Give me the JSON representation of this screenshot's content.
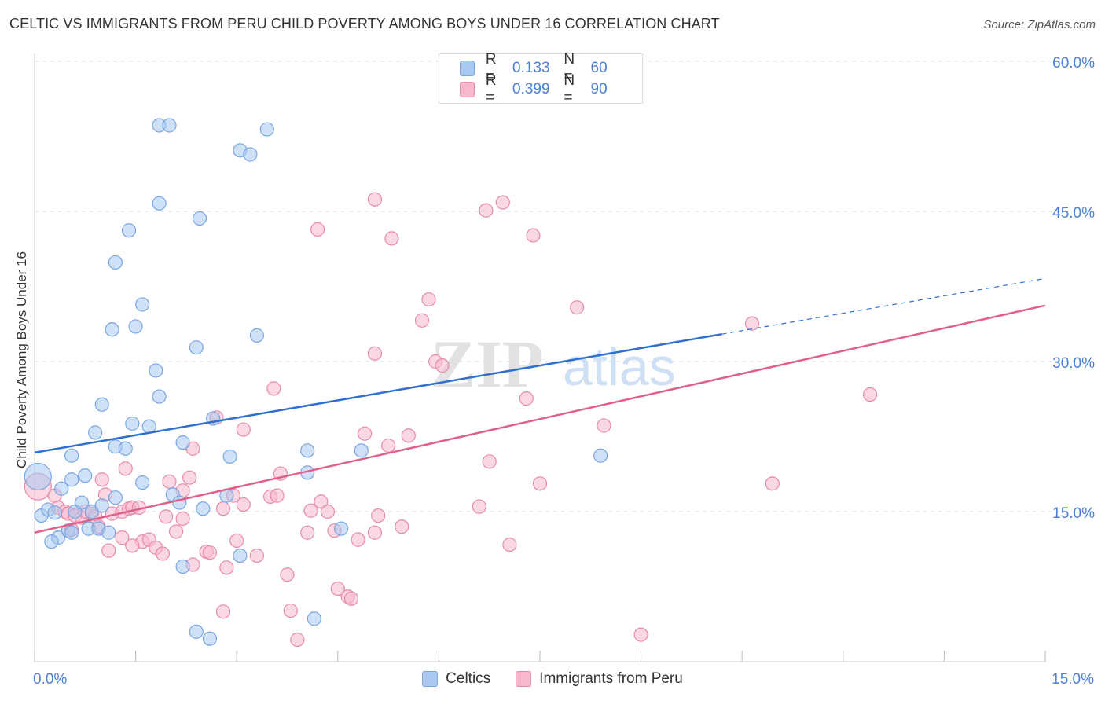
{
  "title": "CELTIC VS IMMIGRANTS FROM PERU CHILD POVERTY AMONG BOYS UNDER 16 CORRELATION CHART",
  "source": "Source: ZipAtlas.com",
  "watermark": {
    "zip": "ZIP",
    "atlas": "atlas"
  },
  "legend": {
    "series": [
      {
        "r_label": "R =",
        "r_value": "0.133",
        "n_label": "N =",
        "n_value": "60"
      },
      {
        "r_label": "R =",
        "r_value": "0.399",
        "n_label": "N =",
        "n_value": "90"
      }
    ]
  },
  "colors": {
    "celtic_fill": "#a8c8f0",
    "celtic_stroke": "#7aa6e0",
    "celtic_line": "#2f6fce",
    "peru_fill": "#f5b8cc",
    "peru_stroke": "#e88aaa",
    "peru_line": "#e0608a",
    "tick_text": "#4a7fd4",
    "grid": "#dddddd"
  },
  "chart_data": {
    "type": "scatter",
    "title": "CELTIC VS IMMIGRANTS FROM PERU CHILD POVERTY AMONG BOYS UNDER 16 CORRELATION CHART",
    "xlabel": "",
    "ylabel": "Child Poverty Among Boys Under 16",
    "xlim": [
      0,
      15
    ],
    "ylim": [
      0,
      60
    ],
    "x_tick_labels": [
      {
        "value": 0,
        "label": "0.0%"
      },
      {
        "value": 15,
        "label": "15.0%"
      }
    ],
    "y_tick_labels": [
      {
        "value": 15,
        "label": "15.0%"
      },
      {
        "value": 30,
        "label": "30.0%"
      },
      {
        "value": 45,
        "label": "45.0%"
      },
      {
        "value": 60,
        "label": "60.0%"
      }
    ],
    "grid": true,
    "series": [
      {
        "name": "Celtics",
        "r": 0.133,
        "n": 60,
        "trend": {
          "x0": 0,
          "y0": 20.9,
          "x1": 15,
          "y1": 38.3,
          "solid_until_x": 10.2
        },
        "points": [
          [
            0.1,
            14.6
          ],
          [
            0.2,
            15.2
          ],
          [
            0.3,
            14.9
          ],
          [
            0.35,
            12.4
          ],
          [
            0.5,
            13.1
          ],
          [
            0.6,
            15.0
          ],
          [
            0.55,
            12.9
          ],
          [
            0.25,
            12.0
          ],
          [
            0.4,
            17.3
          ],
          [
            0.55,
            18.2
          ],
          [
            0.75,
            18.6
          ],
          [
            0.7,
            15.9
          ],
          [
            0.85,
            15.0
          ],
          [
            0.8,
            13.3
          ],
          [
            0.95,
            13.3
          ],
          [
            1.1,
            12.9
          ],
          [
            1.2,
            16.4
          ],
          [
            1.0,
            15.6
          ],
          [
            0.55,
            20.6
          ],
          [
            0.9,
            22.9
          ],
          [
            1.2,
            21.5
          ],
          [
            1.35,
            21.3
          ],
          [
            1.45,
            23.8
          ],
          [
            1.7,
            23.5
          ],
          [
            1.6,
            17.9
          ],
          [
            1.0,
            25.7
          ],
          [
            1.85,
            26.5
          ],
          [
            1.8,
            29.1
          ],
          [
            2.2,
            21.9
          ],
          [
            2.05,
            16.7
          ],
          [
            2.15,
            15.9
          ],
          [
            2.5,
            15.3
          ],
          [
            2.65,
            24.3
          ],
          [
            2.9,
            20.5
          ],
          [
            2.85,
            16.6
          ],
          [
            2.4,
            31.4
          ],
          [
            1.15,
            33.2
          ],
          [
            1.5,
            33.5
          ],
          [
            1.6,
            35.7
          ],
          [
            3.3,
            32.6
          ],
          [
            1.2,
            39.9
          ],
          [
            1.4,
            43.1
          ],
          [
            1.85,
            45.8
          ],
          [
            2.45,
            44.3
          ],
          [
            1.85,
            53.6
          ],
          [
            2.0,
            53.6
          ],
          [
            3.05,
            51.1
          ],
          [
            3.2,
            50.7
          ],
          [
            3.45,
            53.2
          ],
          [
            4.05,
            21.1
          ],
          [
            4.85,
            21.1
          ],
          [
            4.05,
            18.9
          ],
          [
            4.55,
            13.3
          ],
          [
            3.05,
            10.6
          ],
          [
            2.2,
            9.5
          ],
          [
            2.4,
            3.0
          ],
          [
            2.6,
            2.3
          ],
          [
            4.15,
            4.3
          ],
          [
            8.4,
            20.6
          ],
          [
            0.05,
            18.5
          ]
        ]
      },
      {
        "name": "Immigrants from Peru",
        "r": 0.399,
        "n": 90,
        "trend": {
          "x0": 0,
          "y0": 12.9,
          "x1": 15,
          "y1": 35.6
        },
        "points": [
          [
            0.05,
            17.5
          ],
          [
            0.3,
            16.6
          ],
          [
            0.35,
            15.4
          ],
          [
            0.45,
            15.0
          ],
          [
            0.5,
            14.8
          ],
          [
            0.55,
            13.2
          ],
          [
            0.6,
            14.6
          ],
          [
            0.7,
            14.4
          ],
          [
            0.75,
            15.0
          ],
          [
            0.85,
            14.8
          ],
          [
            0.9,
            14.5
          ],
          [
            0.95,
            13.5
          ],
          [
            1.05,
            16.7
          ],
          [
            1.0,
            18.2
          ],
          [
            1.1,
            11.1
          ],
          [
            1.15,
            14.8
          ],
          [
            1.3,
            15.0
          ],
          [
            1.4,
            15.3
          ],
          [
            1.45,
            15.4
          ],
          [
            1.55,
            15.4
          ],
          [
            1.35,
            19.3
          ],
          [
            1.6,
            12.0
          ],
          [
            1.7,
            12.2
          ],
          [
            1.8,
            11.4
          ],
          [
            1.95,
            14.5
          ],
          [
            2.0,
            18.0
          ],
          [
            2.1,
            13.0
          ],
          [
            2.2,
            14.3
          ],
          [
            2.2,
            17.1
          ],
          [
            2.35,
            21.3
          ],
          [
            2.3,
            18.4
          ],
          [
            2.55,
            11.0
          ],
          [
            2.7,
            24.4
          ],
          [
            2.8,
            15.3
          ],
          [
            2.95,
            16.6
          ],
          [
            3.1,
            23.2
          ],
          [
            3.0,
            12.1
          ],
          [
            3.1,
            15.7
          ],
          [
            3.3,
            10.6
          ],
          [
            3.5,
            16.5
          ],
          [
            3.6,
            16.6
          ],
          [
            3.65,
            18.8
          ],
          [
            3.75,
            8.7
          ],
          [
            3.8,
            5.1
          ],
          [
            3.9,
            2.2
          ],
          [
            3.55,
            27.3
          ],
          [
            4.05,
            12.9
          ],
          [
            4.1,
            15.1
          ],
          [
            4.25,
            16.0
          ],
          [
            4.35,
            15.0
          ],
          [
            4.45,
            13.1
          ],
          [
            4.5,
            7.3
          ],
          [
            4.65,
            6.5
          ],
          [
            4.7,
            6.3
          ],
          [
            4.8,
            12.2
          ],
          [
            4.9,
            22.8
          ],
          [
            5.05,
            12.9
          ],
          [
            5.1,
            14.6
          ],
          [
            5.25,
            21.6
          ],
          [
            5.45,
            13.5
          ],
          [
            5.55,
            22.6
          ],
          [
            5.05,
            30.8
          ],
          [
            5.95,
            30.0
          ],
          [
            6.05,
            29.6
          ],
          [
            5.75,
            34.1
          ],
          [
            5.85,
            36.2
          ],
          [
            5.3,
            42.3
          ],
          [
            5.05,
            46.2
          ],
          [
            4.2,
            43.2
          ],
          [
            6.7,
            45.1
          ],
          [
            6.95,
            45.9
          ],
          [
            7.4,
            42.6
          ],
          [
            6.6,
            15.5
          ],
          [
            6.75,
            20.0
          ],
          [
            7.05,
            11.7
          ],
          [
            7.3,
            26.3
          ],
          [
            7.5,
            17.8
          ],
          [
            8.05,
            35.4
          ],
          [
            8.45,
            23.6
          ],
          [
            10.65,
            33.8
          ],
          [
            10.95,
            17.8
          ],
          [
            12.4,
            26.7
          ],
          [
            9.0,
            2.7
          ],
          [
            2.8,
            5.0
          ],
          [
            2.35,
            9.7
          ],
          [
            2.6,
            10.9
          ],
          [
            2.85,
            9.4
          ],
          [
            1.45,
            11.6
          ],
          [
            1.3,
            12.4
          ],
          [
            1.9,
            10.8
          ]
        ]
      }
    ]
  },
  "bottom_legend": [
    {
      "label": "Celtics"
    },
    {
      "label": "Immigrants from Peru"
    }
  ]
}
